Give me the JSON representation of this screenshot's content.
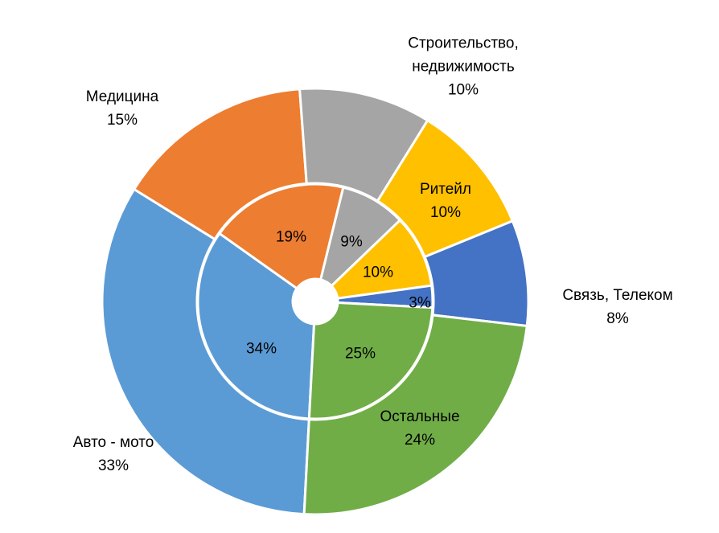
{
  "chart_data": {
    "type": "doughnut",
    "categories": [
      "Авто - мото",
      "Медицина",
      "Строительство, недвижимость",
      "Ритейл",
      "Связь, Телеком",
      "Остальные"
    ],
    "colors": [
      "#5b9bd5",
      "#ed7d31",
      "#a5a5a5",
      "#ffc000",
      "#4472c4",
      "#70ad47"
    ],
    "series": [
      {
        "values": [
          33,
          15,
          10,
          10,
          8,
          24
        ],
        "value_labels": [
          "33%",
          "15%",
          "10%",
          "10%",
          "8%",
          "24%"
        ]
      },
      {
        "values": [
          34,
          19,
          9,
          10,
          3,
          25
        ],
        "value_labels": [
          "34%",
          "19%",
          "9%",
          "10%",
          "3%",
          "25%"
        ]
      }
    ]
  }
}
